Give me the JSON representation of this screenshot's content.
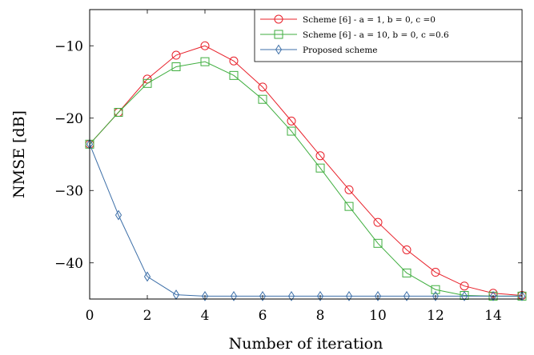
{
  "chart_data": {
    "type": "line",
    "title": "",
    "xlabel": "Number of iteration",
    "ylabel": "NMSE [dB]",
    "xlim": [
      0,
      15
    ],
    "ylim": [
      -45,
      -5
    ],
    "xticks": [
      0,
      2,
      4,
      6,
      8,
      10,
      12,
      14
    ],
    "yticks": [
      -10,
      -20,
      -30,
      -40
    ],
    "grid": false,
    "legend_position": "top-right",
    "x": [
      0,
      1,
      2,
      3,
      4,
      5,
      6,
      7,
      8,
      9,
      10,
      11,
      12,
      13,
      14,
      15
    ],
    "series": [
      {
        "name": "Scheme [6] - a = 1, b = 0, c =0",
        "color": "#e8202a",
        "marker": "circle",
        "values": [
          -23.6,
          -19.2,
          -14.6,
          -11.3,
          -10.0,
          -12.1,
          -15.7,
          -20.4,
          -25.2,
          -29.9,
          -34.4,
          -38.2,
          -41.3,
          -43.2,
          -44.2,
          -44.5
        ]
      },
      {
        "name": "Scheme [6] - a = 10, b = 0, c =0.6",
        "color": "#3fae3f",
        "marker": "square",
        "values": [
          -23.6,
          -19.2,
          -15.2,
          -12.9,
          -12.2,
          -14.1,
          -17.4,
          -21.8,
          -26.9,
          -32.2,
          -37.3,
          -41.4,
          -43.7,
          -44.5,
          -44.6,
          -44.6
        ]
      },
      {
        "name": "Proposed scheme",
        "color": "#3d6fa8",
        "marker": "diamond",
        "values": [
          -23.6,
          -33.4,
          -41.9,
          -44.4,
          -44.6,
          -44.6,
          -44.6,
          -44.6,
          -44.6,
          -44.6,
          -44.6,
          -44.6,
          -44.6,
          -44.6,
          -44.6,
          -44.6
        ]
      }
    ]
  }
}
